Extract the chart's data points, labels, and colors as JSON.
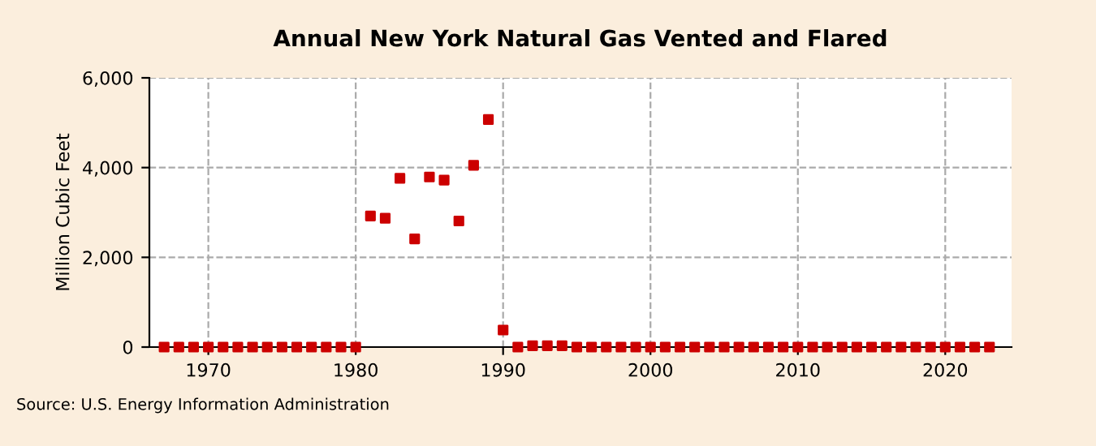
{
  "chart_data": {
    "type": "scatter",
    "title": "Annual New York Natural Gas Vented and Flared",
    "ylabel": "Million Cubic Feet",
    "x": [
      1967,
      1968,
      1969,
      1970,
      1971,
      1972,
      1973,
      1974,
      1975,
      1976,
      1977,
      1978,
      1979,
      1980,
      1981,
      1982,
      1983,
      1984,
      1985,
      1986,
      1987,
      1988,
      1989,
      1990,
      1991,
      1992,
      1993,
      1994,
      1995,
      1996,
      1997,
      1998,
      1999,
      2000,
      2001,
      2002,
      2003,
      2004,
      2005,
      2006,
      2007,
      2008,
      2009,
      2010,
      2011,
      2012,
      2013,
      2014,
      2015,
      2016,
      2017,
      2018,
      2019,
      2020,
      2021,
      2022,
      2023
    ],
    "series": [
      {
        "color": "#cc0000",
        "values": [
          0,
          0,
          0,
          0,
          0,
          0,
          0,
          0,
          0,
          0,
          0,
          0,
          0,
          0,
          2920,
          2870,
          3760,
          2410,
          3790,
          3720,
          2810,
          4050,
          5070,
          380,
          0,
          30,
          30,
          30,
          0,
          0,
          0,
          0,
          0,
          0,
          0,
          0,
          0,
          0,
          0,
          0,
          0,
          0,
          0,
          0,
          0,
          0,
          0,
          0,
          0,
          0,
          0,
          0,
          0,
          0,
          0,
          0,
          0
        ]
      }
    ],
    "xlim": [
      1966,
      2024.5
    ],
    "xticks": [
      1970,
      1980,
      1990,
      2000,
      2010,
      2020
    ],
    "ylim": [
      0,
      6000
    ],
    "yticks": [
      {
        "value": 0,
        "label": "0"
      },
      {
        "value": 2000,
        "label": "2,000"
      },
      {
        "value": 4000,
        "label": "4,000"
      },
      {
        "value": 6000,
        "label": "6,000"
      }
    ],
    "grid": true,
    "marker": "square",
    "annotations": [
      "Source: U.S. Energy Information Administration"
    ]
  }
}
